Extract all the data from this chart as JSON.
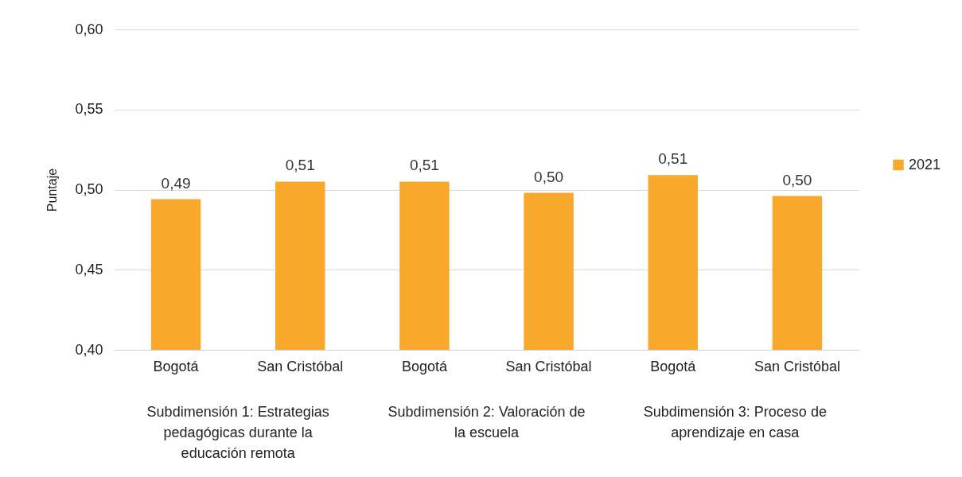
{
  "chart_data": {
    "type": "bar",
    "ylabel": "Puntaje",
    "categories": [
      "Bogotá",
      "San Cristóbal",
      "Bogotá",
      "San Cristóbal",
      "Bogotá",
      "San Cristóbal"
    ],
    "series": [
      {
        "name": "2021",
        "color": "#f8a82a",
        "values": [
          0.494,
          0.505,
          0.505,
          0.498,
          0.509,
          0.496
        ],
        "value_labels": [
          "0,49",
          "0,51",
          "0,51",
          "0,50",
          "0,51",
          "0,50"
        ]
      }
    ],
    "annotations": [
      "Subdimensión 1: Estrategias pedagógicas durante la educación remota",
      "Subdimensión 2: Valoración de la escuela",
      "Subdimensión 3: Proceso de aprendizaje en casa"
    ],
    "ylim": [
      0.4,
      0.6
    ],
    "yticks": [
      {
        "value": 0.4,
        "label": "0,40"
      },
      {
        "value": 0.45,
        "label": "0,45"
      },
      {
        "value": 0.5,
        "label": "0,50"
      },
      {
        "value": 0.55,
        "label": "0,55"
      },
      {
        "value": 0.6,
        "label": "0,60"
      }
    ],
    "grid": "y",
    "legend": "right"
  }
}
